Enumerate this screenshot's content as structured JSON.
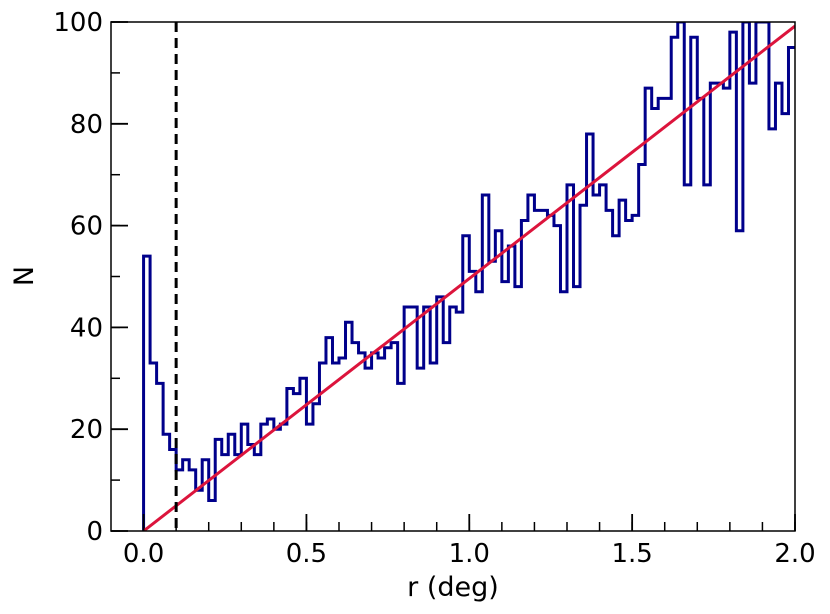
{
  "chart_data": {
    "type": "histogram-step",
    "xlabel": "r (deg)",
    "ylabel": "N",
    "xlim": [
      -0.1,
      2.0
    ],
    "ylim": [
      0,
      100
    ],
    "xticks": [
      "0.0",
      "0.5",
      "1.0",
      "1.5",
      "2.0"
    ],
    "yticks": [
      "0",
      "20",
      "40",
      "60",
      "80",
      "100"
    ],
    "xtick_values": [
      0.0,
      0.5,
      1.0,
      1.5,
      2.0
    ],
    "ytick_values": [
      0,
      20,
      40,
      60,
      80,
      100
    ],
    "grid": false,
    "bin_start": 0.0,
    "bin_width": 0.02,
    "series": [
      {
        "type": "step",
        "color": "#00008b",
        "values": [
          54,
          33,
          29,
          19,
          16,
          12,
          14,
          12,
          8,
          14,
          6,
          18,
          15,
          19,
          15,
          21,
          17,
          15,
          21,
          22,
          20,
          21,
          28,
          27,
          30,
          21,
          25,
          33,
          38,
          33,
          34,
          41,
          37,
          35,
          32,
          35,
          34,
          36,
          37,
          29,
          44,
          44,
          32,
          44,
          33,
          46,
          37,
          44,
          43,
          58,
          51,
          47,
          66,
          53,
          59,
          49,
          56,
          48,
          61,
          66,
          63,
          63,
          62,
          60,
          47,
          68,
          48,
          64,
          78,
          66,
          68,
          63,
          58,
          65,
          61,
          62,
          72,
          87,
          83,
          85,
          85,
          97,
          100,
          68,
          97,
          85,
          68,
          88,
          88,
          87,
          98,
          59,
          100,
          88,
          100,
          100,
          79,
          88,
          82,
          95
        ]
      },
      {
        "type": "line",
        "color": "#dc143c",
        "x": [
          0.0,
          2.0
        ],
        "y": [
          0,
          99.2
        ]
      }
    ],
    "vline": {
      "x": 0.1,
      "color": "#000000",
      "style": "dashed"
    }
  }
}
